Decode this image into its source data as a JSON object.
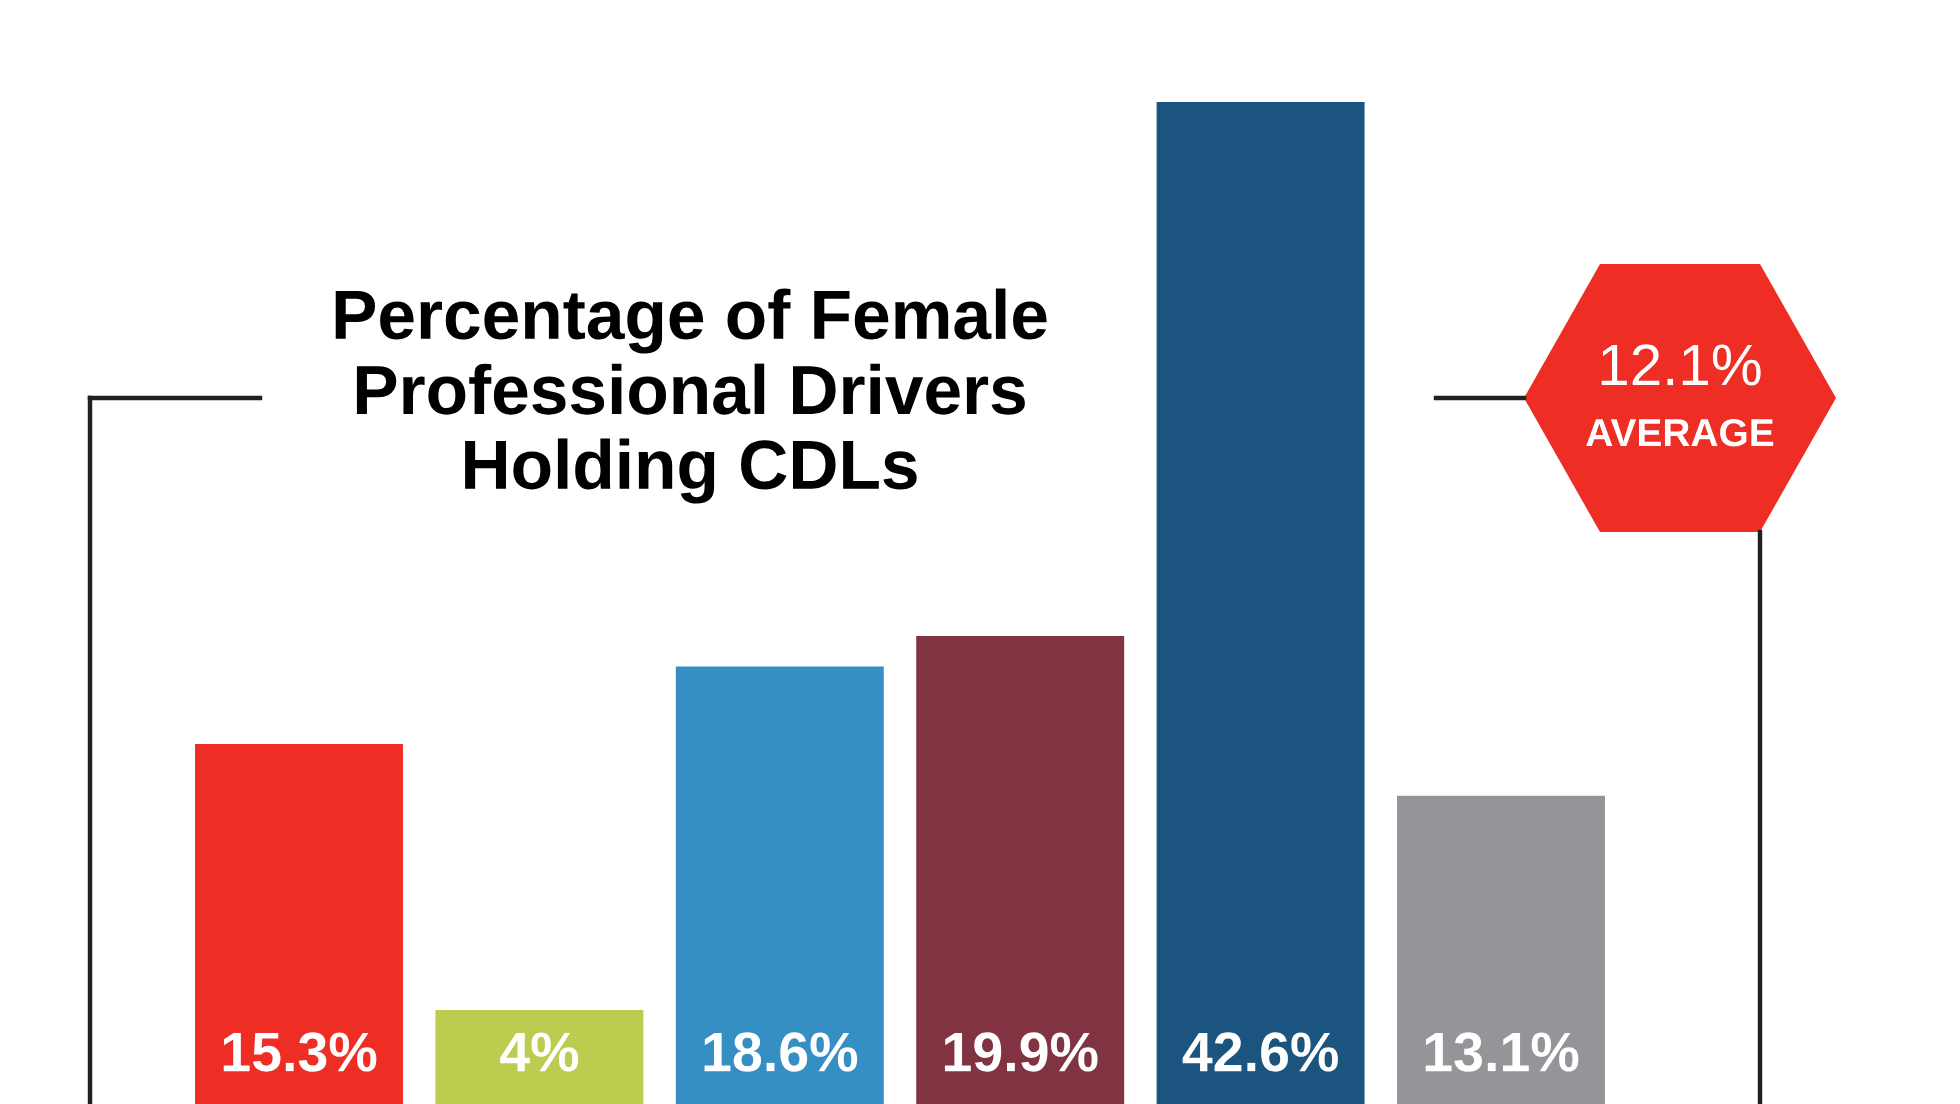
{
  "chart_data": {
    "type": "bar",
    "title": "Percentage of Female\nProfessional Drivers\nHolding CDLs",
    "categories": [
      null,
      null,
      null,
      null,
      null,
      null
    ],
    "values": [
      15.3,
      4,
      18.6,
      19.9,
      42.6,
      13.1
    ],
    "colors": [
      "#ee2e24",
      "#bccc4e",
      "#368fc3",
      "#823341",
      "#1b557f",
      "#939598"
    ],
    "value_labels": [
      "15.3%",
      "4%",
      "18.6%",
      "19.9%",
      "42.6%",
      "13.1%"
    ],
    "annotations": [
      "12.1%",
      "AVERAGE"
    ]
  }
}
